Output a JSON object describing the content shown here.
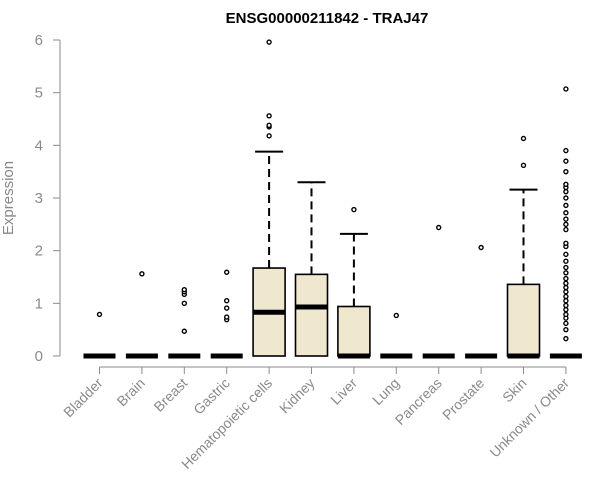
{
  "chart_data": {
    "type": "box",
    "title": "ENSG00000211842 - TRAJ47",
    "ylabel": "Expression",
    "xlabel": "",
    "ylim": [
      0,
      6
    ],
    "yticks": [
      0,
      1,
      2,
      3,
      4,
      5,
      6
    ],
    "box_fill": "#efe8cf",
    "outlier_color": "#000000",
    "categories": [
      "Bladder",
      "Brain",
      "Breast",
      "Gastric",
      "Hematopoietic cells",
      "Kidney",
      "Liver",
      "Lung",
      "Pancreas",
      "Prostate",
      "Skin",
      "Unknown / Other"
    ],
    "boxes": [
      {
        "q1": 0,
        "median": 0,
        "q3": 0,
        "whisker_low": 0,
        "whisker_high": 0,
        "outliers": [
          0.79
        ]
      },
      {
        "q1": 0,
        "median": 0,
        "q3": 0,
        "whisker_low": 0,
        "whisker_high": 0,
        "outliers": [
          1.56
        ]
      },
      {
        "q1": 0,
        "median": 0,
        "q3": 0,
        "whisker_low": 0,
        "whisker_high": 0,
        "outliers": [
          0.47,
          1.0,
          1.17,
          1.22,
          1.26
        ]
      },
      {
        "q1": 0,
        "median": 0,
        "q3": 0,
        "whisker_low": 0,
        "whisker_high": 0,
        "outliers": [
          0.69,
          0.74,
          0.91,
          1.05,
          1.59
        ]
      },
      {
        "q1": 0,
        "median": 0.83,
        "q3": 1.67,
        "whisker_low": 0,
        "whisker_high": 3.88,
        "outliers": [
          4.18,
          4.35,
          4.38,
          4.56,
          5.96
        ]
      },
      {
        "q1": 0,
        "median": 0.93,
        "q3": 1.55,
        "whisker_low": 0,
        "whisker_high": 3.3,
        "outliers": []
      },
      {
        "q1": 0,
        "median": 0,
        "q3": 0.94,
        "whisker_low": 0,
        "whisker_high": 2.32,
        "outliers": [
          2.78
        ]
      },
      {
        "q1": 0,
        "median": 0,
        "q3": 0,
        "whisker_low": 0,
        "whisker_high": 0,
        "outliers": [
          0.77
        ]
      },
      {
        "q1": 0,
        "median": 0,
        "q3": 0,
        "whisker_low": 0,
        "whisker_high": 0,
        "outliers": [
          2.44
        ]
      },
      {
        "q1": 0,
        "median": 0,
        "q3": 0,
        "whisker_low": 0,
        "whisker_high": 0,
        "outliers": [
          2.06
        ]
      },
      {
        "q1": 0,
        "median": 0,
        "q3": 1.36,
        "whisker_low": 0,
        "whisker_high": 3.16,
        "outliers": [
          3.62,
          4.13
        ]
      },
      {
        "q1": 0,
        "median": 0,
        "q3": 0,
        "whisker_low": 0,
        "whisker_high": 0,
        "outliers": [
          0.33,
          0.5,
          0.62,
          0.72,
          0.79,
          0.88,
          0.96,
          1.05,
          1.13,
          1.22,
          1.3,
          1.38,
          1.47,
          1.58,
          1.68,
          1.8,
          1.93,
          2.08,
          2.14,
          2.4,
          2.5,
          2.6,
          2.72,
          2.86,
          3.0,
          3.12,
          3.2,
          3.26,
          3.5,
          3.7,
          3.9,
          5.07
        ]
      }
    ]
  }
}
